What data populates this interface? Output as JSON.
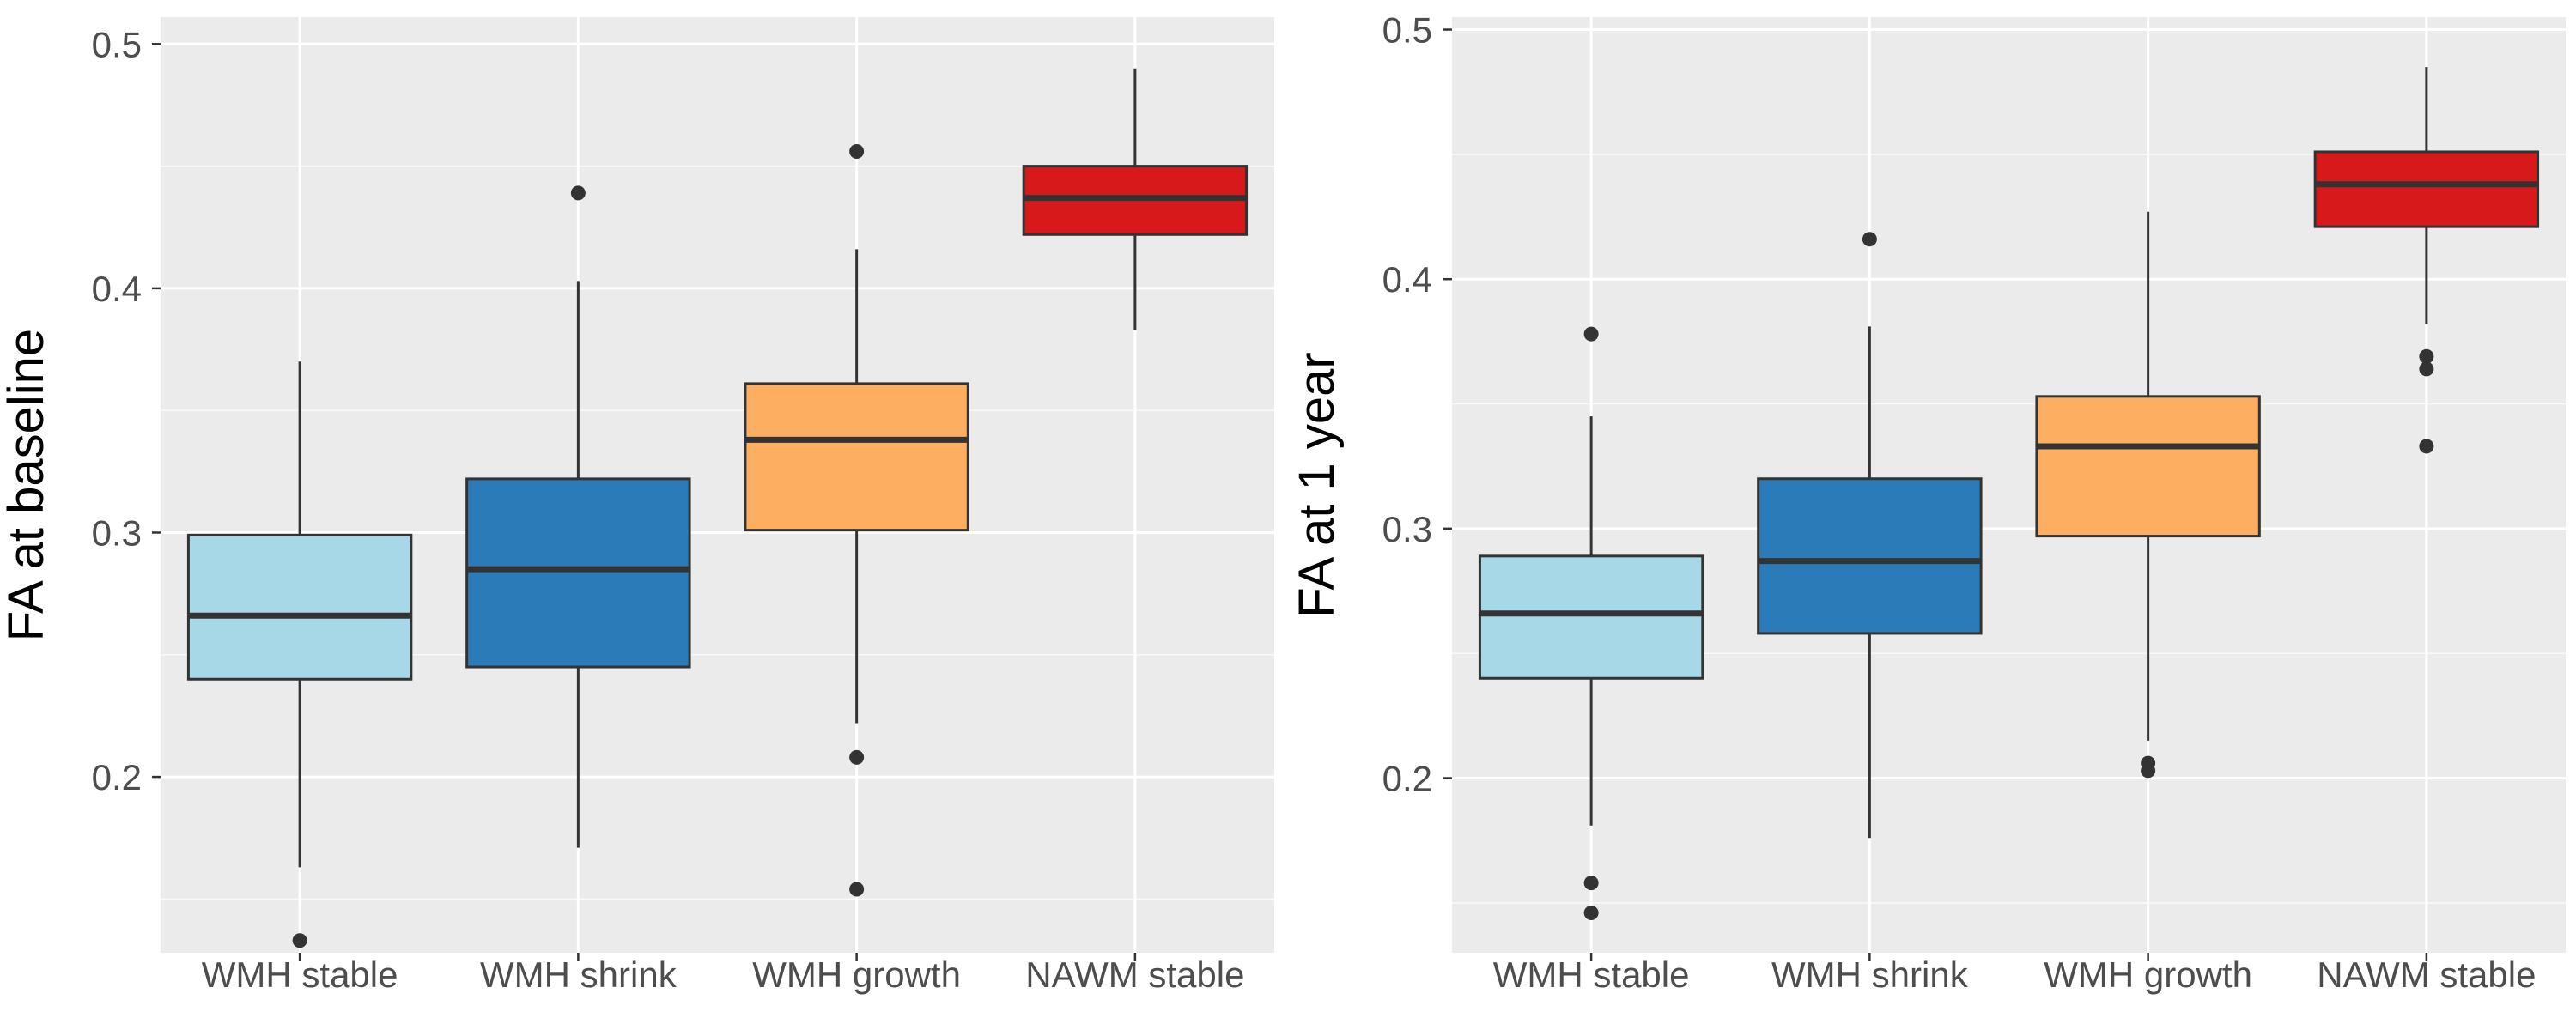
{
  "colors": {
    "panel_bg": "#EBEBEB",
    "grid_major": "#FFFFFF",
    "box_line": "#333333"
  },
  "chart_data": [
    {
      "type": "boxplot",
      "ylabel": "FA at baseline",
      "xlabel": "",
      "ylim": [
        0.128,
        0.511
      ],
      "yticks": [
        0.2,
        0.3,
        0.4,
        0.5
      ],
      "ytick_labels": [
        "0.2",
        "0.3",
        "0.4",
        "0.5"
      ],
      "categories": [
        "WMH stable",
        "WMH shrink",
        "WMH growth",
        "NAWM stable"
      ],
      "boxes": [
        {
          "category": "WMH stable",
          "color": "#A6D8E8",
          "whisker_low": 0.163,
          "q1": 0.24,
          "median": 0.266,
          "q3": 0.299,
          "whisker_high": 0.37,
          "outliers": [
            0.133
          ]
        },
        {
          "category": "WMH shrink",
          "color": "#2B7BB9",
          "whisker_low": 0.171,
          "q1": 0.245,
          "median": 0.285,
          "q3": 0.322,
          "whisker_high": 0.403,
          "outliers": [
            0.439
          ]
        },
        {
          "category": "WMH growth",
          "color": "#FDAE61",
          "whisker_low": 0.222,
          "q1": 0.301,
          "median": 0.338,
          "q3": 0.361,
          "whisker_high": 0.416,
          "outliers": [
            0.456,
            0.208,
            0.154
          ]
        },
        {
          "category": "NAWM stable",
          "color": "#D7191C",
          "whisker_low": 0.383,
          "q1": 0.422,
          "median": 0.437,
          "q3": 0.45,
          "whisker_high": 0.49,
          "outliers": []
        }
      ]
    },
    {
      "type": "boxplot",
      "ylabel": "FA at 1 year",
      "xlabel": "",
      "ylim": [
        0.13,
        0.505
      ],
      "yticks": [
        0.2,
        0.3,
        0.4,
        0.5
      ],
      "ytick_labels": [
        "0.2",
        "0.3",
        "0.4",
        "0.5"
      ],
      "categories": [
        "WMH stable",
        "WMH shrink",
        "WMH growth",
        "NAWM stable"
      ],
      "boxes": [
        {
          "category": "WMH stable",
          "color": "#A6D8E8",
          "whisker_low": 0.181,
          "q1": 0.24,
          "median": 0.266,
          "q3": 0.289,
          "whisker_high": 0.345,
          "outliers": [
            0.378,
            0.158,
            0.146
          ]
        },
        {
          "category": "WMH shrink",
          "color": "#2B7BB9",
          "whisker_low": 0.176,
          "q1": 0.258,
          "median": 0.287,
          "q3": 0.32,
          "whisker_high": 0.381,
          "outliers": [
            0.416
          ]
        },
        {
          "category": "WMH growth",
          "color": "#FDAE61",
          "whisker_low": 0.215,
          "q1": 0.297,
          "median": 0.333,
          "q3": 0.353,
          "whisker_high": 0.427,
          "outliers": [
            0.206,
            0.203
          ]
        },
        {
          "category": "NAWM stable",
          "color": "#D7191C",
          "whisker_low": 0.382,
          "q1": 0.421,
          "median": 0.438,
          "q3": 0.451,
          "whisker_high": 0.485,
          "outliers": [
            0.369,
            0.364,
            0.333
          ]
        }
      ]
    }
  ]
}
